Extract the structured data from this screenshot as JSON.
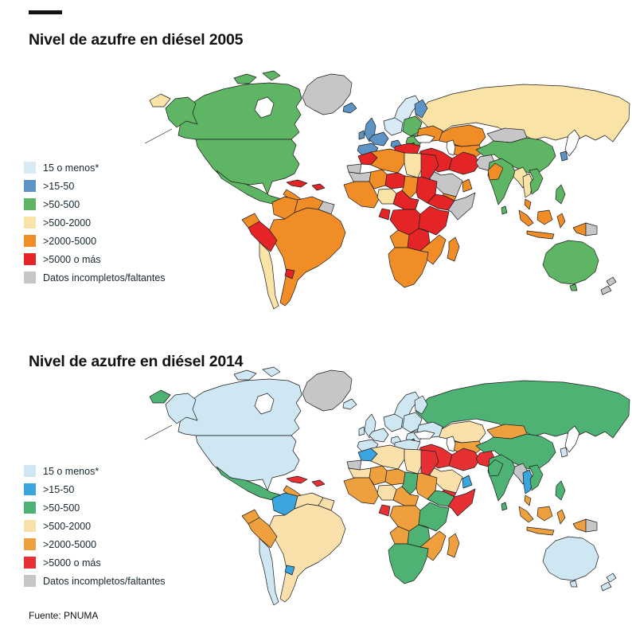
{
  "maps": [
    {
      "id": "map-2005",
      "year": "2005",
      "title": "Nivel de azufre en diésel 2005"
    },
    {
      "id": "map-2014",
      "year": "2014",
      "title": "Nivel de azufre en diésel 2014"
    }
  ],
  "legend": {
    "items": [
      {
        "key": "c1",
        "label": "15 o menos*"
      },
      {
        "key": "c2",
        "label": ">15-50"
      },
      {
        "key": "c3",
        "label": ">50-500"
      },
      {
        "key": "c4",
        "label": ">500-2000"
      },
      {
        "key": "c5",
        "label": ">2000-5000"
      },
      {
        "key": "c6",
        "label": ">5000 o más"
      },
      {
        "key": "c7",
        "label": "Datos incompletos/faltantes"
      }
    ]
  },
  "source": "Fuente: PNUMA",
  "palettes": [
    {
      "c1": "#d7eaf6",
      "c2": "#5e93c6",
      "c3": "#5eb563",
      "c4": "#fae3a7",
      "c5": "#f08d27",
      "c6": "#e42426",
      "c7": "#c6c6c8",
      "sea": "#ffffff",
      "white": "#ffffff"
    },
    {
      "c1": "#cfe6f3",
      "c2": "#3aa5de",
      "c3": "#4fb275",
      "c4": "#fae0ab",
      "c5": "#efa03e",
      "c6": "#e73034",
      "c7": "#c6c6c8",
      "sea": "#ffffff",
      "white": "#ffffff"
    }
  ],
  "regions": {
    "greenland": [
      "c7",
      "c7"
    ],
    "canada": [
      "c3",
      "c1"
    ],
    "alaska": [
      "c3",
      "c1"
    ],
    "chukotka": [
      "c4",
      "c3"
    ],
    "usa": [
      "c3",
      "c1"
    ],
    "mexico": [
      "c3",
      "c3"
    ],
    "central_america": [
      "c5",
      "c5"
    ],
    "cuba": [
      "c6",
      "c6"
    ],
    "hispaniola": [
      "c6",
      "c6"
    ],
    "colombia": [
      "c5",
      "c2"
    ],
    "venezuela": [
      "c5",
      "c4"
    ],
    "guyanas": [
      "c7",
      "c4"
    ],
    "ecuador": [
      "c5",
      "c5"
    ],
    "peru": [
      "c6",
      "c5"
    ],
    "brazil_cone": [
      "c5",
      "c4"
    ],
    "chile": [
      "c4",
      "c1"
    ],
    "uruguay": [
      "c6",
      "c2"
    ],
    "iceland": [
      "c2",
      "c1"
    ],
    "uk": [
      "c2",
      "c1"
    ],
    "ireland": [
      "c2",
      "c1"
    ],
    "scandinavia": [
      "c1",
      "c1"
    ],
    "finland": [
      "c2",
      "c1"
    ],
    "russia": [
      "c4",
      "c3"
    ],
    "kazakhstan": [
      "c5",
      "c4"
    ],
    "central_asia": [
      "c5",
      "c5"
    ],
    "ukraine": [
      "c5",
      "c1"
    ],
    "eastern_europe": [
      "c3",
      "c1"
    ],
    "central_europe": [
      "c1",
      "c1"
    ],
    "france": [
      "c2",
      "c1"
    ],
    "iberia": [
      "c2",
      "c1"
    ],
    "italy": [
      "c2",
      "c1"
    ],
    "balkans": [
      "c3",
      "c1"
    ],
    "albania": [
      "c6",
      "c6"
    ],
    "turkey": [
      "c6",
      "c1"
    ],
    "levant_iraq": [
      "c6",
      "c6"
    ],
    "iran": [
      "c6",
      "c6"
    ],
    "afghanistan": [
      "c7",
      "c6"
    ],
    "pakistan": [
      "c5",
      "c3"
    ],
    "saudi": [
      "c7",
      "c4"
    ],
    "yemen": [
      "c5",
      "c6"
    ],
    "oman": [
      "c5",
      "c2"
    ],
    "morocco": [
      "c6",
      "c2"
    ],
    "wsahara": [
      "c7",
      "c7"
    ],
    "mauritania": [
      "c7",
      "c4"
    ],
    "algeria": [
      "c5",
      "c4"
    ],
    "libya": [
      "c4",
      "c4"
    ],
    "egypt": [
      "c6",
      "c6"
    ],
    "mali": [
      "c5",
      "c5"
    ],
    "niger": [
      "c6",
      "c5"
    ],
    "chad": [
      "c5",
      "c3"
    ],
    "sudan": [
      "c6",
      "c5"
    ],
    "west_africa": [
      "c5",
      "c5"
    ],
    "nigeria": [
      "c4",
      "c4"
    ],
    "cameroon_car": [
      "c6",
      "c5"
    ],
    "ethiopia": [
      "c6",
      "c3"
    ],
    "somalia": [
      "c7",
      "c6"
    ],
    "gabon": [
      "c6",
      "c6"
    ],
    "drc": [
      "c6",
      "c5"
    ],
    "east_africa": [
      "c6",
      "c3"
    ],
    "angola": [
      "c5",
      "c5"
    ],
    "zambia_zimbabwe": [
      "c6",
      "c3"
    ],
    "mozambique": [
      "c5",
      "c5"
    ],
    "southern_africa": [
      "c5",
      "c3"
    ],
    "madagascar": [
      "c5",
      "c5"
    ],
    "mongolia": [
      "c7",
      "c5"
    ],
    "china": [
      "c3",
      "c3"
    ],
    "korea": [
      "c2",
      "c1"
    ],
    "japan": [
      "white",
      "white"
    ],
    "india": [
      "c3",
      "c3"
    ],
    "sri_lanka": [
      "c3",
      "c3"
    ],
    "myanmar": [
      "c4",
      "c7"
    ],
    "thailand": [
      "c4",
      "c2"
    ],
    "vietnam": [
      "c3",
      "c3"
    ],
    "malaysia": [
      "c5",
      "c5"
    ],
    "indonesia": [
      "c5",
      "c5"
    ],
    "philippines": [
      "c3",
      "c3"
    ],
    "png": [
      "c5",
      "c5"
    ],
    "png_east": [
      "c7",
      "c7"
    ],
    "australia": [
      "c3",
      "c1"
    ],
    "new_zealand": [
      "c7",
      "c1"
    ]
  }
}
